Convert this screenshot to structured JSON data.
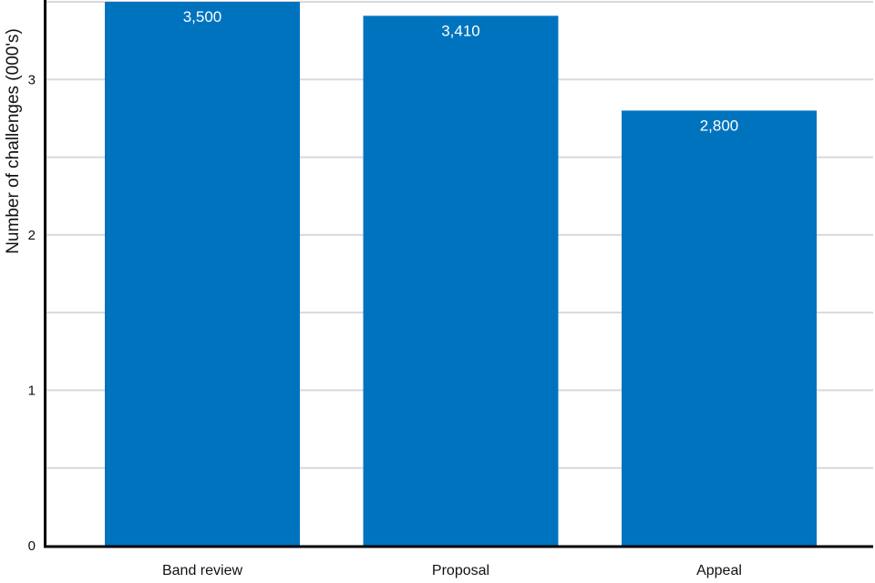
{
  "chart_data": {
    "type": "bar",
    "categories": [
      "Band review",
      "Proposal",
      "Appeal"
    ],
    "values": [
      3500,
      3410,
      2800
    ],
    "value_labels": [
      "3,500",
      "3,410",
      "2,800"
    ],
    "title": "",
    "xlabel": "",
    "ylabel": "Number of challenges (000's)",
    "ylim": [
      0,
      3.5
    ],
    "y_unit_divisor": 1000,
    "yticks": [
      0,
      1,
      2,
      3
    ],
    "gridline_step": 0.5,
    "grid": true,
    "legend_position": "none",
    "colors": {
      "bar": "#0073BE",
      "gridline": "#D9D9D9",
      "axis": "#000000",
      "text": "#111111",
      "value_label_text": "#FFFFFF"
    }
  }
}
